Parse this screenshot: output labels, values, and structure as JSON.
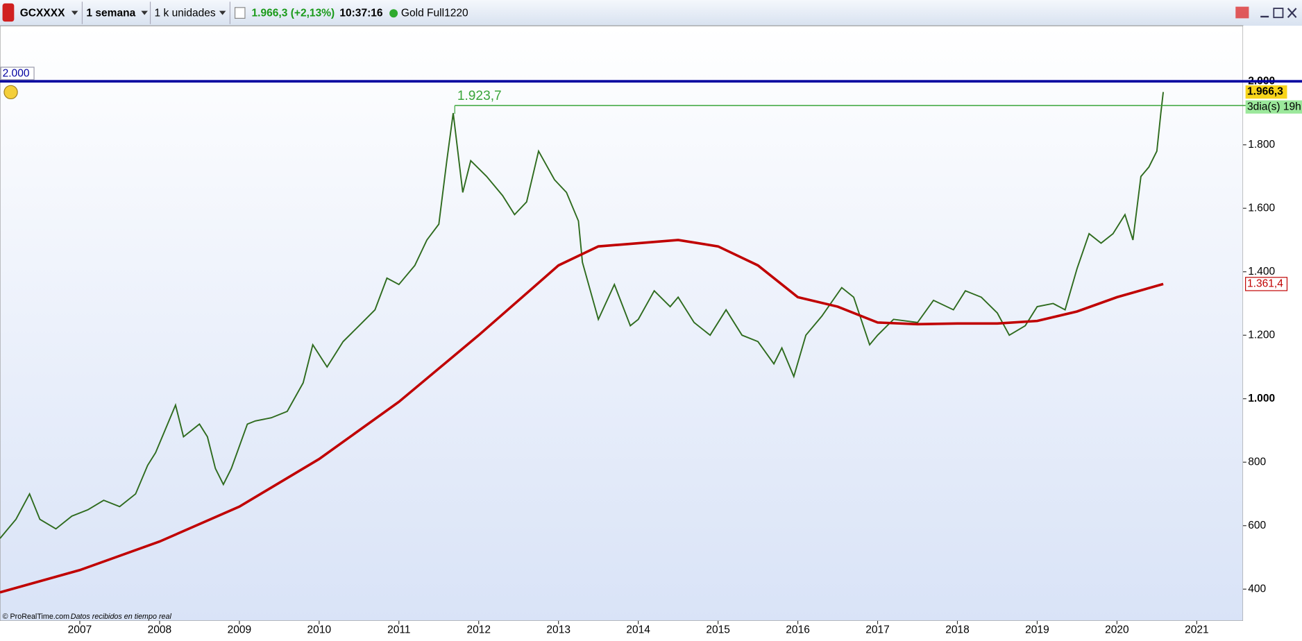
{
  "ui": {
    "symbol": "GCXXXX",
    "period": "1 semana",
    "units": "1 k unidades",
    "quote": "1.966,3 (+2,13%)",
    "time": "10:37:16",
    "feed": "Gold Full1220",
    "source": "© ProRealTime.com",
    "status": "Datos recibidos en tiempo real"
  },
  "chart_data": {
    "type": "line",
    "xlim": [
      2006.0,
      2021.58
    ],
    "xticks": [
      2007,
      2008,
      2009,
      2010,
      2011,
      2012,
      2013,
      2014,
      2015,
      2016,
      2017,
      2018,
      2019,
      2020,
      2021
    ],
    "ylim": [
      300,
      2175
    ],
    "yticks": [
      400,
      600,
      800,
      {
        "value": 1000,
        "label": "1.000"
      },
      {
        "value": 1200,
        "label": "1.200"
      },
      {
        "value": 1400,
        "label": "1.400"
      },
      {
        "value": 1600,
        "label": "1.600"
      },
      {
        "value": 1800,
        "label": "1.800"
      },
      {
        "value": 2000,
        "label": "2.000"
      }
    ],
    "series": [
      {
        "color": "#2e6b1e",
        "x": [
          2006.0,
          2006.2,
          2006.37,
          2006.5,
          2006.7,
          2006.9,
          2007.1,
          2007.3,
          2007.5,
          2007.7,
          2007.85,
          2007.95,
          2008.1,
          2008.2,
          2008.3,
          2008.5,
          2008.6,
          2008.7,
          2008.8,
          2008.9,
          2009.1,
          2009.2,
          2009.4,
          2009.6,
          2009.8,
          2009.92,
          2010.1,
          2010.3,
          2010.5,
          2010.7,
          2010.85,
          2011.0,
          2011.2,
          2011.35,
          2011.5,
          2011.6,
          2011.68,
          2011.8,
          2011.9,
          2012.1,
          2012.3,
          2012.45,
          2012.6,
          2012.75,
          2012.95,
          2013.1,
          2013.25,
          2013.3,
          2013.5,
          2013.7,
          2013.9,
          2014.0,
          2014.2,
          2014.4,
          2014.5,
          2014.7,
          2014.9,
          2015.1,
          2015.3,
          2015.5,
          2015.7,
          2015.8,
          2015.95,
          2016.1,
          2016.3,
          2016.55,
          2016.7,
          2016.9,
          2017.0,
          2017.2,
          2017.5,
          2017.7,
          2017.95,
          2018.1,
          2018.3,
          2018.5,
          2018.65,
          2018.85,
          2019.0,
          2019.2,
          2019.35,
          2019.5,
          2019.65,
          2019.8,
          2019.95,
          2020.1,
          2020.2,
          2020.3,
          2020.4,
          2020.5,
          2020.55,
          2020.58
        ],
        "values": [
          560,
          620,
          700,
          620,
          590,
          630,
          650,
          680,
          660,
          700,
          790,
          830,
          920,
          980,
          880,
          920,
          880,
          780,
          730,
          780,
          920,
          930,
          940,
          960,
          1050,
          1170,
          1100,
          1180,
          1230,
          1280,
          1380,
          1360,
          1420,
          1500,
          1550,
          1750,
          1900,
          1650,
          1750,
          1700,
          1640,
          1580,
          1620,
          1780,
          1690,
          1650,
          1560,
          1430,
          1250,
          1360,
          1230,
          1250,
          1340,
          1290,
          1320,
          1240,
          1200,
          1280,
          1200,
          1180,
          1110,
          1160,
          1070,
          1200,
          1260,
          1350,
          1320,
          1170,
          1200,
          1250,
          1240,
          1310,
          1280,
          1340,
          1320,
          1270,
          1200,
          1230,
          1290,
          1300,
          1280,
          1410,
          1520,
          1490,
          1520,
          1580,
          1500,
          1700,
          1730,
          1780,
          1900,
          1966.3
        ]
      },
      {
        "color": "#c00000",
        "x": [
          2006.0,
          2007,
          2008,
          2009,
          2010,
          2011,
          2012,
          2013,
          2013.5,
          2014.5,
          2015,
          2015.5,
          2016,
          2016.5,
          2017,
          2017.5,
          2018,
          2018.5,
          2019,
          2019.5,
          2020,
          2020.58
        ],
        "values": [
          390,
          460,
          550,
          660,
          810,
          990,
          1200,
          1420,
          1480,
          1500,
          1480,
          1420,
          1320,
          1290,
          1240,
          1235,
          1237,
          1237,
          1245,
          1275,
          1320,
          1361.4
        ]
      }
    ],
    "hlines": [
      {
        "value": 2000,
        "label": "2.000",
        "color": "#0000a0"
      },
      {
        "value": 1923.7,
        "label": "1.923,7",
        "color": "#3aa53a",
        "from": 2011.7
      }
    ],
    "price_tag": {
      "value": 1966.3,
      "label": "1.966,3",
      "countdown": "3dia(s) 19h"
    },
    "ma_tag": {
      "value": 1361.4,
      "label": "1.361,4"
    }
  }
}
